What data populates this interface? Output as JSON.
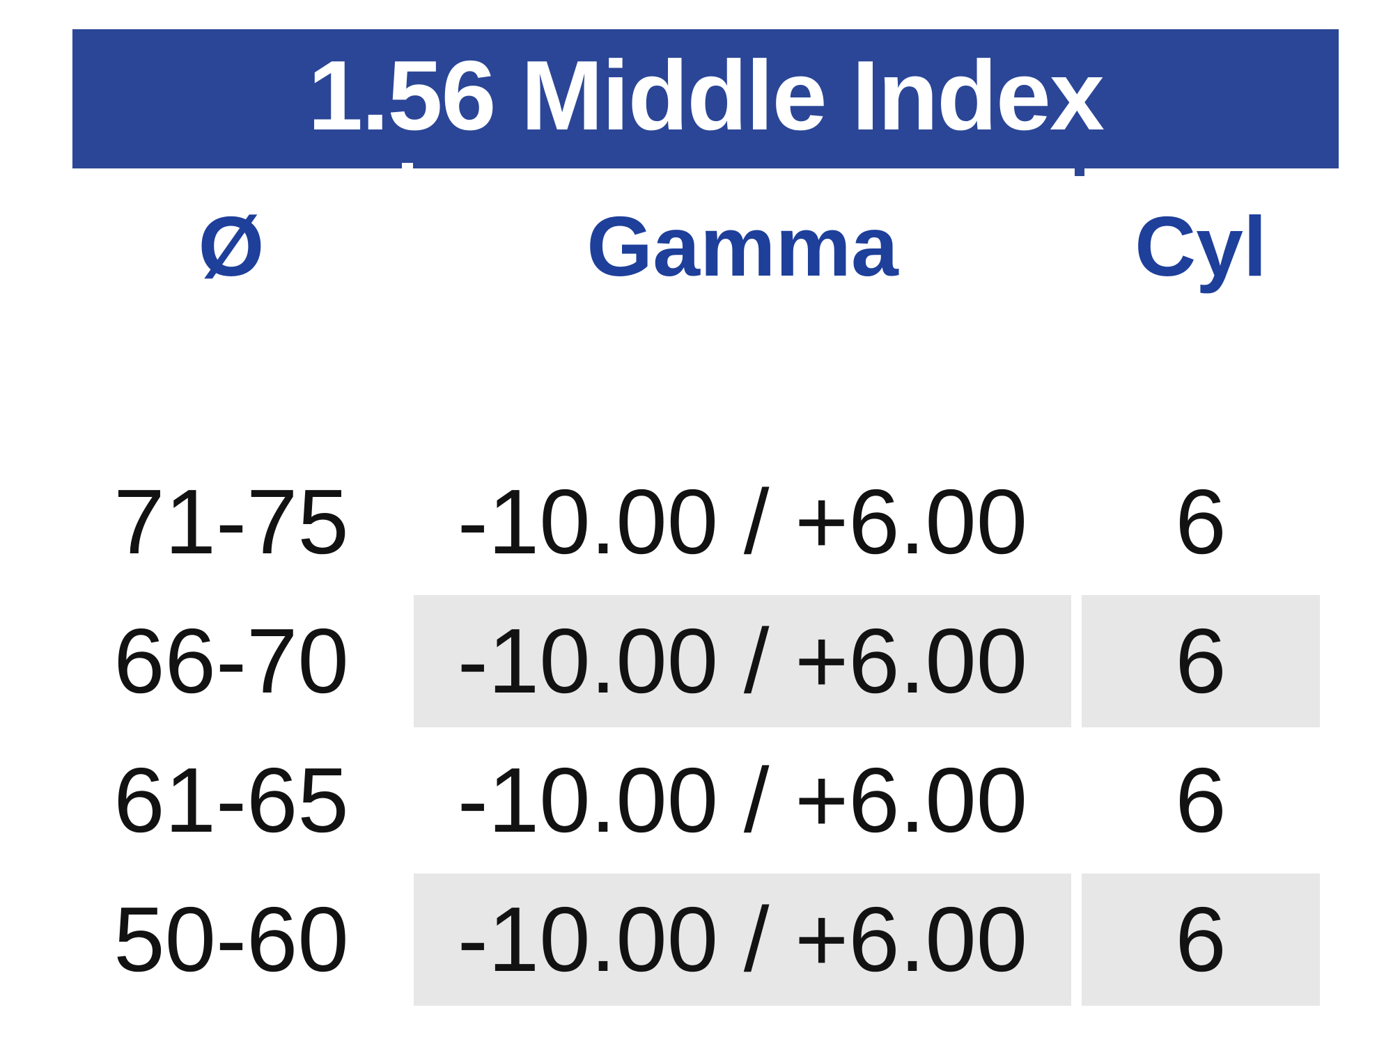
{
  "header": {
    "title": "1.56 Middle Index",
    "bg_color": "#2b4697",
    "text_color": "#ffffff"
  },
  "table": {
    "header_text_color": "#1e3f9a",
    "row_shade_color": "#e7e7e7",
    "data_text_color": "#121212",
    "columns": [
      {
        "id": "diameter",
        "label": "Ø"
      },
      {
        "id": "gamma",
        "label": "Gamma"
      },
      {
        "id": "cyl",
        "label": "Cyl"
      }
    ],
    "rows": [
      {
        "diameter": "71-75",
        "gamma": "-10.00 / +6.00",
        "cyl": "6",
        "shaded": false
      },
      {
        "diameter": "66-70",
        "gamma": "-10.00 / +6.00",
        "cyl": "6",
        "shaded": true
      },
      {
        "diameter": "61-65",
        "gamma": "-10.00 / +6.00",
        "cyl": "6",
        "shaded": false
      },
      {
        "diameter": "50-60",
        "gamma": "-10.00 / +6.00",
        "cyl": "6",
        "shaded": true
      }
    ]
  }
}
